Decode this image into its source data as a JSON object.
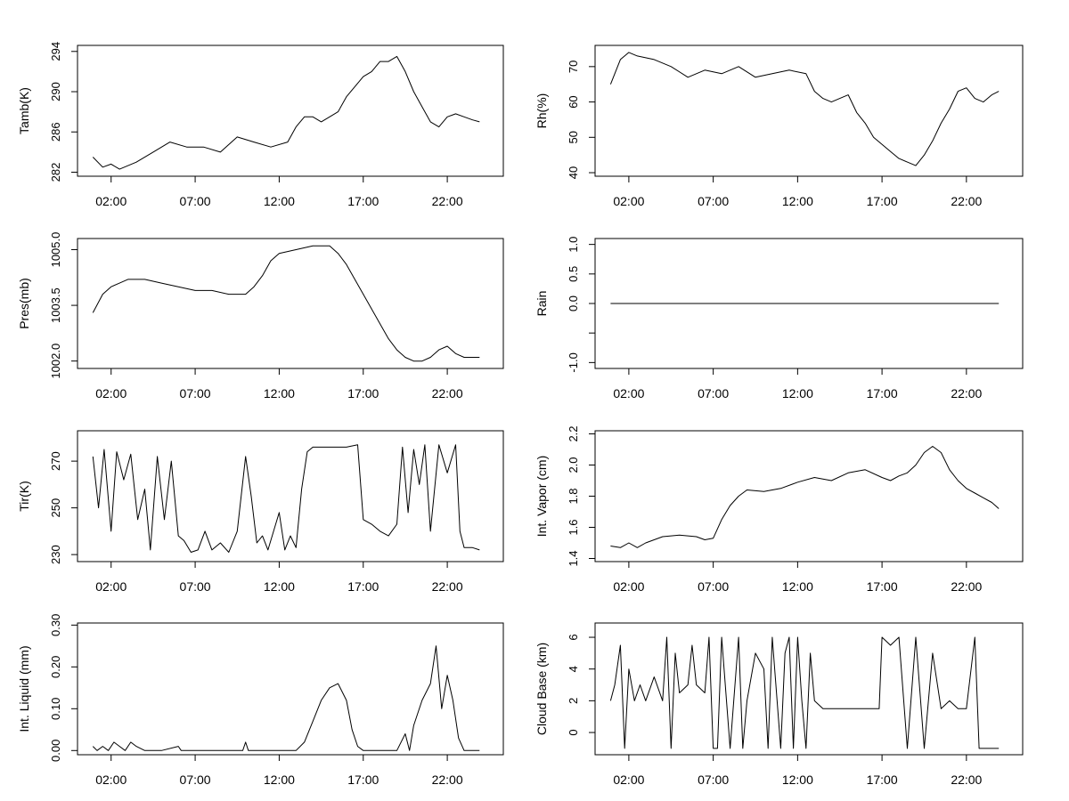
{
  "figure": {
    "x_tick_labels": [
      "02:00",
      "07:00",
      "12:00",
      "17:00",
      "22:00"
    ],
    "line_color": "#000000",
    "background": "#ffffff"
  },
  "chart_data": [
    {
      "type": "line",
      "ylabel": "Tamb(K)",
      "ylim": [
        281.6,
        294.6
      ],
      "yticks": [
        282,
        286,
        290,
        294
      ],
      "x": [
        "00:55",
        "01:30",
        "02:00",
        "02:30",
        "03:30",
        "04:30",
        "05:30",
        "06:30",
        "07:30",
        "08:30",
        "09:30",
        "10:30",
        "11:30",
        "12:30",
        "13:00",
        "13:30",
        "14:00",
        "14:30",
        "15:00",
        "15:30",
        "16:00",
        "16:30",
        "17:00",
        "17:30",
        "18:00",
        "18:30",
        "19:00",
        "19:30",
        "20:00",
        "20:30",
        "21:00",
        "21:30",
        "22:00",
        "22:30",
        "23:00",
        "23:30",
        "23:55"
      ],
      "values": [
        283.5,
        282.5,
        282.8,
        282.3,
        283.0,
        284.0,
        285.0,
        284.5,
        284.5,
        284.0,
        285.5,
        285.0,
        284.5,
        285.0,
        286.5,
        287.5,
        287.5,
        287.0,
        287.5,
        288.0,
        289.5,
        290.5,
        291.5,
        292.0,
        293.0,
        293.0,
        293.5,
        292.0,
        290.0,
        288.5,
        287.0,
        286.5,
        287.5,
        287.8,
        287.5,
        287.2,
        287.0
      ]
    },
    {
      "type": "line",
      "ylabel": "Rh(%)",
      "ylim": [
        39,
        76
      ],
      "yticks": [
        40,
        50,
        60,
        70
      ],
      "x": [
        "00:55",
        "01:30",
        "02:00",
        "02:30",
        "03:30",
        "04:30",
        "05:30",
        "06:30",
        "07:30",
        "08:30",
        "09:30",
        "10:30",
        "11:30",
        "12:30",
        "13:00",
        "13:30",
        "14:00",
        "14:30",
        "15:00",
        "15:30",
        "16:00",
        "16:30",
        "17:00",
        "17:30",
        "18:00",
        "18:30",
        "19:00",
        "19:30",
        "20:00",
        "20:30",
        "21:00",
        "21:30",
        "22:00",
        "22:30",
        "23:00",
        "23:30",
        "23:55"
      ],
      "values": [
        65,
        72,
        74,
        73,
        72,
        70,
        67,
        69,
        68,
        70,
        67,
        68,
        69,
        68,
        63,
        61,
        60,
        61,
        62,
        57,
        54,
        50,
        48,
        46,
        44,
        43,
        42,
        45,
        49,
        54,
        58,
        63,
        64,
        61,
        60,
        62,
        63
      ]
    },
    {
      "type": "line",
      "ylabel": "Pres(mb)",
      "ylim": [
        1001.8,
        1005.3
      ],
      "yticks": [
        1002.0,
        1003.5,
        1005.0
      ],
      "ytick_labels": [
        "1002.0",
        "1003.5",
        "1005.0"
      ],
      "x": [
        "00:55",
        "01:30",
        "02:00",
        "02:30",
        "03:00",
        "04:00",
        "05:00",
        "06:00",
        "07:00",
        "08:00",
        "09:00",
        "10:00",
        "10:30",
        "11:00",
        "11:30",
        "12:00",
        "13:00",
        "14:00",
        "15:00",
        "15:30",
        "16:00",
        "16:30",
        "17:00",
        "17:30",
        "18:00",
        "18:30",
        "19:00",
        "19:30",
        "20:00",
        "20:30",
        "21:00",
        "21:30",
        "22:00",
        "22:30",
        "23:00",
        "23:30",
        "23:55"
      ],
      "values": [
        1003.3,
        1003.8,
        1004.0,
        1004.1,
        1004.2,
        1004.2,
        1004.1,
        1004.0,
        1003.9,
        1003.9,
        1003.8,
        1003.8,
        1004.0,
        1004.3,
        1004.7,
        1004.9,
        1005.0,
        1005.1,
        1005.1,
        1004.9,
        1004.6,
        1004.2,
        1003.8,
        1003.4,
        1003.0,
        1002.6,
        1002.3,
        1002.1,
        1002.0,
        1002.0,
        1002.1,
        1002.3,
        1002.4,
        1002.2,
        1002.1,
        1002.1,
        1002.1
      ]
    },
    {
      "type": "line",
      "ylabel": "Rain",
      "ylim": [
        -1.1,
        1.1
      ],
      "yticks": [
        -1.0,
        -0.5,
        0.0,
        0.5,
        1.0
      ],
      "ytick_labels": [
        "-1.0",
        "",
        "0.0",
        "0.5",
        "1.0"
      ],
      "x": [
        "00:55",
        "23:55"
      ],
      "values": [
        0.0,
        0.0
      ]
    },
    {
      "type": "line",
      "ylabel": "Tir(K)",
      "ylim": [
        227,
        283
      ],
      "yticks": [
        230,
        250,
        270
      ],
      "x": [
        "00:55",
        "01:15",
        "01:35",
        "02:00",
        "02:20",
        "02:45",
        "03:10",
        "03:35",
        "04:00",
        "04:20",
        "04:45",
        "05:10",
        "05:35",
        "06:00",
        "06:20",
        "06:45",
        "07:10",
        "07:35",
        "08:00",
        "08:30",
        "09:00",
        "09:30",
        "10:00",
        "10:20",
        "10:40",
        "11:00",
        "11:20",
        "11:40",
        "12:00",
        "12:20",
        "12:40",
        "13:00",
        "13:20",
        "13:40",
        "14:00",
        "15:00",
        "16:00",
        "16:40",
        "17:00",
        "17:30",
        "18:00",
        "18:30",
        "19:00",
        "19:20",
        "19:40",
        "20:00",
        "20:20",
        "20:40",
        "21:00",
        "21:30",
        "22:00",
        "22:30",
        "22:45",
        "23:00",
        "23:30",
        "23:55"
      ],
      "values": [
        272,
        250,
        275,
        240,
        274,
        262,
        273,
        245,
        258,
        232,
        272,
        245,
        270,
        238,
        236,
        231,
        232,
        240,
        232,
        235,
        231,
        240,
        272,
        255,
        235,
        238,
        232,
        240,
        248,
        232,
        238,
        233,
        258,
        274,
        276,
        276,
        276,
        277,
        245,
        243,
        240,
        238,
        243,
        276,
        248,
        275,
        260,
        277,
        240,
        277,
        265,
        277,
        240,
        233,
        233,
        232
      ]
    },
    {
      "type": "line",
      "ylabel": "Int. Vapor (cm)",
      "ylim": [
        1.38,
        2.22
      ],
      "yticks": [
        1.4,
        1.6,
        1.8,
        2.0,
        2.2
      ],
      "ytick_labels": [
        "1.4",
        "1.6",
        "1.8",
        "2.0",
        "2.2"
      ],
      "x": [
        "00:55",
        "01:30",
        "02:00",
        "02:30",
        "03:00",
        "03:30",
        "04:00",
        "05:00",
        "06:00",
        "06:30",
        "07:00",
        "07:30",
        "08:00",
        "08:30",
        "09:00",
        "10:00",
        "11:00",
        "12:00",
        "13:00",
        "14:00",
        "15:00",
        "16:00",
        "17:00",
        "17:30",
        "18:00",
        "18:30",
        "19:00",
        "19:30",
        "20:00",
        "20:30",
        "21:00",
        "21:30",
        "22:00",
        "22:30",
        "23:00",
        "23:30",
        "23:55"
      ],
      "values": [
        1.48,
        1.47,
        1.5,
        1.47,
        1.5,
        1.52,
        1.54,
        1.55,
        1.54,
        1.52,
        1.53,
        1.65,
        1.74,
        1.8,
        1.84,
        1.83,
        1.85,
        1.89,
        1.92,
        1.9,
        1.95,
        1.97,
        1.92,
        1.9,
        1.93,
        1.95,
        2.0,
        2.08,
        2.12,
        2.08,
        1.97,
        1.9,
        1.85,
        1.82,
        1.79,
        1.76,
        1.72
      ]
    },
    {
      "type": "line",
      "ylabel": "Int. Liquid (mm)",
      "ylim": [
        -0.01,
        0.305
      ],
      "yticks": [
        0.0,
        0.1,
        0.2,
        0.3
      ],
      "ytick_labels": [
        "0.00",
        "0.10",
        "0.20",
        "0.30"
      ],
      "x": [
        "00:55",
        "01:10",
        "01:30",
        "01:50",
        "02:10",
        "02:30",
        "02:50",
        "03:10",
        "03:30",
        "04:00",
        "05:00",
        "06:00",
        "06:10",
        "06:30",
        "09:50",
        "10:00",
        "10:10",
        "13:00",
        "13:30",
        "14:00",
        "14:30",
        "15:00",
        "15:30",
        "16:00",
        "16:20",
        "16:40",
        "17:00",
        "19:00",
        "19:30",
        "19:45",
        "20:00",
        "20:30",
        "21:00",
        "21:20",
        "21:40",
        "22:00",
        "22:20",
        "22:40",
        "23:00",
        "23:55"
      ],
      "values": [
        0.01,
        0.0,
        0.01,
        0.0,
        0.02,
        0.01,
        0.0,
        0.02,
        0.01,
        0.0,
        0.0,
        0.01,
        0.0,
        0.0,
        0.0,
        0.02,
        0.0,
        0.0,
        0.02,
        0.07,
        0.12,
        0.15,
        0.16,
        0.12,
        0.05,
        0.01,
        0.0,
        0.0,
        0.04,
        0.0,
        0.06,
        0.12,
        0.16,
        0.25,
        0.1,
        0.18,
        0.12,
        0.03,
        0.0,
        0.0
      ]
    },
    {
      "type": "line",
      "ylabel": "Cloud Base (km)",
      "ylim": [
        -1.4,
        6.9
      ],
      "yticks": [
        0,
        2,
        4,
        6
      ],
      "x": [
        "00:55",
        "01:10",
        "01:30",
        "01:45",
        "02:00",
        "02:20",
        "02:40",
        "03:00",
        "03:30",
        "04:00",
        "04:15",
        "04:30",
        "04:45",
        "05:00",
        "05:30",
        "05:45",
        "06:00",
        "06:30",
        "06:45",
        "07:00",
        "07:15",
        "07:30",
        "08:00",
        "08:30",
        "08:45",
        "09:00",
        "09:30",
        "10:00",
        "10:15",
        "10:30",
        "11:00",
        "11:15",
        "11:30",
        "11:45",
        "12:00",
        "12:15",
        "12:30",
        "12:45",
        "13:00",
        "13:30",
        "14:00",
        "15:00",
        "16:00",
        "16:50",
        "17:00",
        "17:30",
        "18:00",
        "18:30",
        "19:00",
        "19:30",
        "20:00",
        "20:30",
        "21:00",
        "21:30",
        "22:00",
        "22:30",
        "22:45",
        "23:00",
        "23:55"
      ],
      "values": [
        2.0,
        3.0,
        5.5,
        -1.0,
        4.0,
        2.0,
        3.0,
        2.0,
        3.5,
        2.0,
        6.0,
        -1.0,
        5.0,
        2.5,
        3.0,
        5.5,
        3.0,
        2.5,
        6.0,
        -1.0,
        -1.0,
        6.0,
        -1.0,
        6.0,
        -1.0,
        2.0,
        5.0,
        4.0,
        -1.0,
        6.0,
        -1.0,
        5.0,
        6.0,
        -1.0,
        6.0,
        2.0,
        -1.0,
        5.0,
        2.0,
        1.5,
        1.5,
        1.5,
        1.5,
        1.5,
        6.0,
        5.5,
        6.0,
        -1.0,
        6.0,
        -1.0,
        5.0,
        1.5,
        2.0,
        1.5,
        1.5,
        6.0,
        -1.0,
        -1.0,
        -1.0
      ]
    }
  ]
}
